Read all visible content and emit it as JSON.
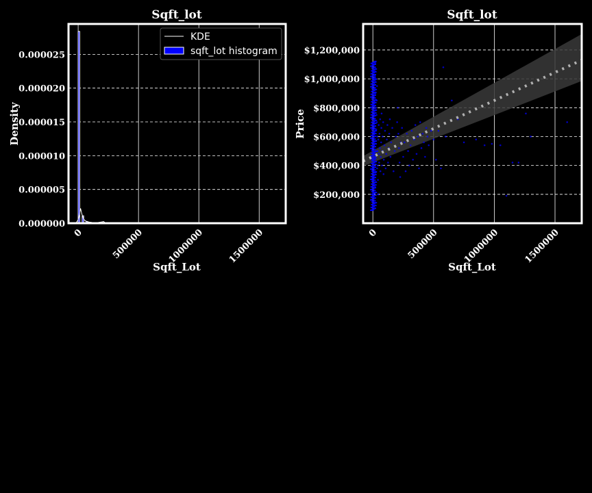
{
  "colors": {
    "background": "#000000",
    "foreground": "#ffffff",
    "histogram": "#0000ff",
    "scatter": "#0000ff",
    "regression_line": "#b0b0b0",
    "confidence_band": "#3a3a3a"
  },
  "chart_data": [
    {
      "type": "bar",
      "title": "Sqft_lot",
      "xlabel": "Sqft_Lot",
      "ylabel": "Density",
      "xlim": [
        -80000,
        1720000
      ],
      "ylim": [
        0,
        2.95e-05
      ],
      "grid": true,
      "legend_position": "top-right",
      "x_ticks": [
        0,
        500000,
        1000000,
        1500000
      ],
      "x_tick_labels": [
        "0",
        "500000",
        "1000000",
        "1500000"
      ],
      "y_ticks": [
        0,
        5e-06,
        1e-05,
        1.5e-05,
        2e-05,
        2.5e-05
      ],
      "y_tick_labels": [
        "0.000000",
        "0.000005",
        "0.000010",
        "0.000015",
        "0.000020",
        "0.000025"
      ],
      "series": [
        {
          "name": "sqft_lot histogram",
          "bin_width": 33000,
          "bin_starts": [
            0,
            33000,
            66000,
            99000,
            132000,
            165000,
            198000,
            231000
          ],
          "values": [
            2.84e-05,
            1.1e-06,
            2.5e-07,
            1.2e-07,
            8e-08,
            5e-08,
            4e-08,
            2e-08
          ]
        },
        {
          "name": "KDE",
          "x": [
            -20000,
            0,
            10000,
            20000,
            30000,
            45000,
            60000,
            80000,
            110000,
            150000,
            200000,
            210000,
            220000,
            240000,
            300000,
            500000,
            1000000,
            1500000,
            1650000
          ],
          "y": [
            0,
            5e-07,
            1.2e-06,
            2.2e-06,
            1.4e-06,
            6e-07,
            3.5e-07,
            2e-07,
            1.2e-07,
            6e-08,
            2e-07,
            2.5e-07,
            1.2e-07,
            4e-08,
            1e-08,
            0,
            0,
            0,
            0
          ]
        }
      ]
    },
    {
      "type": "scatter",
      "title": "Sqft_lot",
      "xlabel": "Sqft_Lot",
      "ylabel": "Price",
      "xlim": [
        -80000,
        1720000
      ],
      "ylim": [
        0,
        1380000
      ],
      "grid": true,
      "x_ticks": [
        0,
        500000,
        1000000,
        1500000
      ],
      "x_tick_labels": [
        "0",
        "500000",
        "1000000",
        "1500000"
      ],
      "y_ticks": [
        200000,
        400000,
        600000,
        800000,
        1000000,
        1200000
      ],
      "y_tick_labels": [
        "$200,000",
        "$400,000",
        "$600,000",
        "$800,000",
        "$1,000,000",
        "$1,200,000"
      ],
      "regression": {
        "x": [
          -80000,
          1720000
        ],
        "y": [
          430000,
          1130000
        ],
        "band_lower": [
          395000,
          985000
        ],
        "band_upper": [
          465000,
          1310000
        ]
      },
      "points": [
        [
          1000,
          90000
        ],
        [
          1500,
          100000
        ],
        [
          2000,
          120000
        ],
        [
          2500,
          150000
        ],
        [
          3000,
          180000
        ],
        [
          3500,
          210000
        ],
        [
          4000,
          240000
        ],
        [
          4500,
          270000
        ],
        [
          5000,
          300000
        ],
        [
          5500,
          330000
        ],
        [
          6000,
          360000
        ],
        [
          6500,
          390000
        ],
        [
          7000,
          420000
        ],
        [
          7500,
          450000
        ],
        [
          8000,
          480000
        ],
        [
          8500,
          510000
        ],
        [
          9000,
          540000
        ],
        [
          9500,
          570000
        ],
        [
          10000,
          600000
        ],
        [
          10500,
          630000
        ],
        [
          11000,
          660000
        ],
        [
          11500,
          690000
        ],
        [
          12000,
          720000
        ],
        [
          12500,
          750000
        ],
        [
          13000,
          780000
        ],
        [
          13500,
          810000
        ],
        [
          14000,
          840000
        ],
        [
          14500,
          870000
        ],
        [
          15000,
          900000
        ],
        [
          15500,
          930000
        ],
        [
          16000,
          960000
        ],
        [
          16500,
          990000
        ],
        [
          17000,
          1020000
        ],
        [
          17500,
          1050000
        ],
        [
          18000,
          1080000
        ],
        [
          19000,
          1110000
        ],
        [
          3000,
          1100000
        ],
        [
          5000,
          1050000
        ],
        [
          8000,
          1000000
        ],
        [
          4000,
          950000
        ],
        [
          6000,
          880000
        ],
        [
          2000,
          820000
        ],
        [
          9000,
          760000
        ],
        [
          7000,
          700000
        ],
        [
          3000,
          650000
        ],
        [
          12000,
          620000
        ],
        [
          5000,
          560000
        ],
        [
          2000,
          500000
        ],
        [
          11000,
          440000
        ],
        [
          6000,
          380000
        ],
        [
          4000,
          320000
        ],
        [
          10000,
          260000
        ],
        [
          3000,
          200000
        ],
        [
          8000,
          140000
        ],
        [
          20000,
          250000
        ],
        [
          22000,
          350000
        ],
        [
          24000,
          450000
        ],
        [
          26000,
          550000
        ],
        [
          28000,
          650000
        ],
        [
          30000,
          750000
        ],
        [
          32000,
          850000
        ],
        [
          34000,
          950000
        ],
        [
          25000,
          1000000
        ],
        [
          21000,
          900000
        ],
        [
          27000,
          800000
        ],
        [
          33000,
          700000
        ],
        [
          36000,
          600000
        ],
        [
          38000,
          500000
        ],
        [
          40000,
          400000
        ],
        [
          42000,
          300000
        ],
        [
          44000,
          200000
        ],
        [
          35000,
          380000
        ],
        [
          45000,
          580000
        ],
        [
          48000,
          680000
        ],
        [
          50000,
          480000
        ],
        [
          52000,
          420000
        ],
        [
          55000,
          620000
        ],
        [
          58000,
          520000
        ],
        [
          60000,
          720000
        ],
        [
          62000,
          360000
        ],
        [
          65000,
          460000
        ],
        [
          68000,
          560000
        ],
        [
          70000,
          660000
        ],
        [
          72000,
          760000
        ],
        [
          75000,
          400000
        ],
        [
          78000,
          500000
        ],
        [
          80000,
          600000
        ],
        [
          85000,
          700000
        ],
        [
          88000,
          340000
        ],
        [
          90000,
          440000
        ],
        [
          95000,
          540000
        ],
        [
          100000,
          640000
        ],
        [
          105000,
          380000
        ],
        [
          110000,
          480000
        ],
        [
          115000,
          580000
        ],
        [
          120000,
          680000
        ],
        [
          125000,
          420000
        ],
        [
          130000,
          520000
        ],
        [
          135000,
          620000
        ],
        [
          140000,
          720000
        ],
        [
          145000,
          460000
        ],
        [
          150000,
          560000
        ],
        [
          160000,
          660000
        ],
        [
          170000,
          360000
        ],
        [
          180000,
          500000
        ],
        [
          190000,
          600000
        ],
        [
          200000,
          700000
        ],
        [
          205000,
          800000
        ],
        [
          210000,
          620000
        ],
        [
          215000,
          520000
        ],
        [
          220000,
          420000
        ],
        [
          225000,
          320000
        ],
        [
          230000,
          560000
        ],
        [
          240000,
          660000
        ],
        [
          250000,
          460000
        ],
        [
          260000,
          560000
        ],
        [
          270000,
          360000
        ],
        [
          280000,
          620000
        ],
        [
          290000,
          500000
        ],
        [
          300000,
          400000
        ],
        [
          310000,
          540000
        ],
        [
          320000,
          640000
        ],
        [
          330000,
          440000
        ],
        [
          340000,
          580000
        ],
        [
          350000,
          680000
        ],
        [
          360000,
          480000
        ],
        [
          370000,
          600000
        ],
        [
          380000,
          380000
        ],
        [
          390000,
          700000
        ],
        [
          400000,
          520000
        ],
        [
          410000,
          620000
        ],
        [
          420000,
          560000
        ],
        [
          430000,
          460000
        ],
        [
          440000,
          660000
        ],
        [
          450000,
          600000
        ],
        [
          460000,
          540000
        ],
        [
          480000,
          640000
        ],
        [
          500000,
          580000
        ],
        [
          520000,
          440000
        ],
        [
          540000,
          640000
        ],
        [
          560000,
          380000
        ],
        [
          580000,
          1080000
        ],
        [
          600000,
          600000
        ],
        [
          650000,
          850000
        ],
        [
          700000,
          720000
        ],
        [
          750000,
          560000
        ],
        [
          850000,
          580000
        ],
        [
          920000,
          540000
        ],
        [
          980000,
          550000
        ],
        [
          1050000,
          540000
        ],
        [
          1100000,
          190000
        ],
        [
          1150000,
          420000
        ],
        [
          1200000,
          420000
        ],
        [
          1260000,
          760000
        ],
        [
          1300000,
          600000
        ],
        [
          1600000,
          700000
        ]
      ]
    }
  ]
}
